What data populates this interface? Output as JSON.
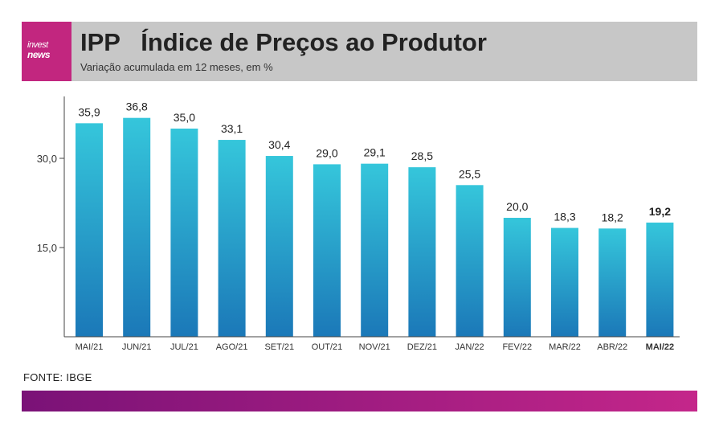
{
  "header": {
    "logo_line1": "invest",
    "logo_line2": "news",
    "title": "IPP   Índice de Preços ao Produtor",
    "subtitle": "Variação acumulada em 12 meses, em %"
  },
  "watermark": "investnews",
  "source": "FONTE: IBGE",
  "colors": {
    "bar_top": "#35c6db",
    "bar_bottom": "#1b78b8",
    "brand": "#c2267f",
    "header_bg": "#c7c7c7"
  },
  "chart_data": {
    "type": "bar",
    "categories": [
      "MAI/21",
      "JUN/21",
      "JUL/21",
      "AGO/21",
      "SET/21",
      "OUT/21",
      "NOV/21",
      "DEZ/21",
      "JAN/22",
      "FEV/22",
      "MAR/22",
      "ABR/22",
      "MAI/22"
    ],
    "values": [
      35.9,
      36.8,
      35.0,
      33.1,
      30.4,
      29.0,
      29.1,
      28.5,
      25.5,
      20.0,
      18.3,
      18.2,
      19.2
    ],
    "value_labels": [
      "35,9",
      "36,8",
      "35,0",
      "33,1",
      "30,4",
      "29,0",
      "29,1",
      "28,5",
      "25,5",
      "20,0",
      "18,3",
      "18,2",
      "19,2"
    ],
    "highlighted_category": "MAI/22",
    "yticks": [
      15.0,
      30.0
    ],
    "ytick_labels": [
      "15,0",
      "30,0"
    ],
    "ylim": [
      0,
      40
    ],
    "grid": false,
    "legend": false
  }
}
